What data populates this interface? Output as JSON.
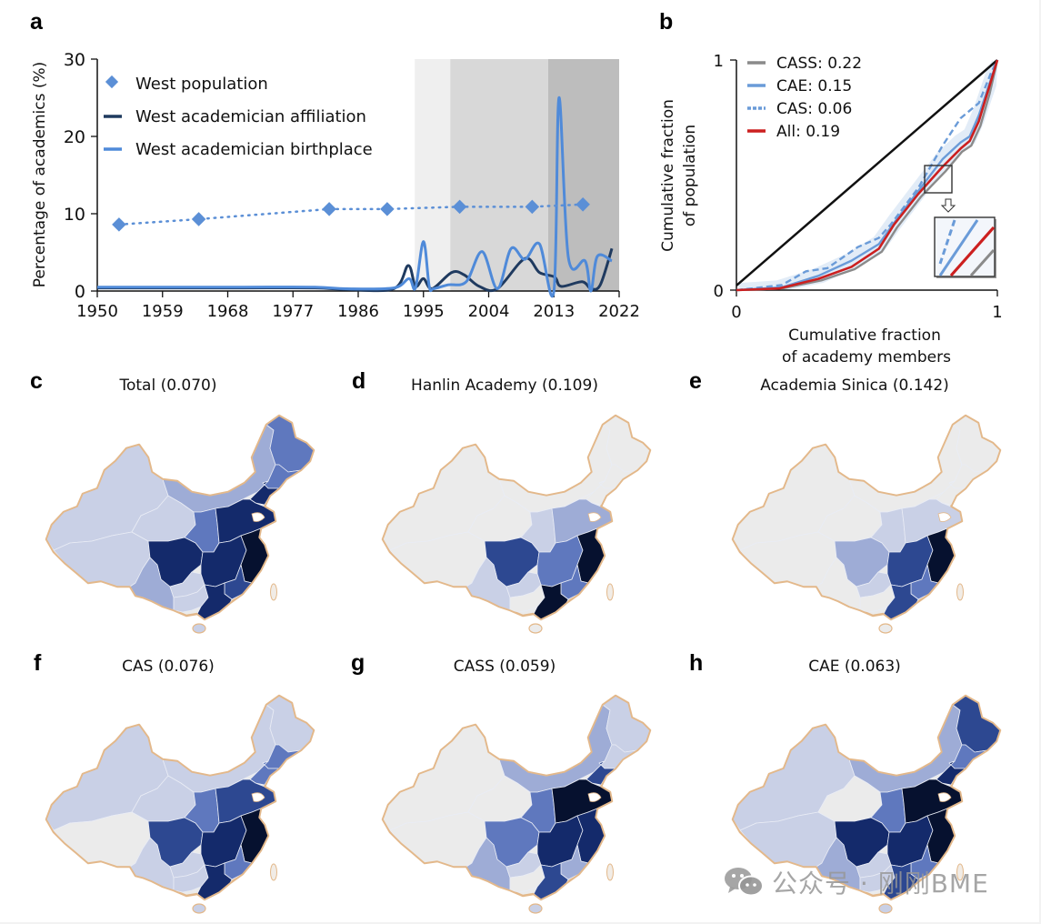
{
  "panel_letters": {
    "a": "a",
    "b": "b",
    "c": "c",
    "d": "d",
    "e": "e",
    "f": "f",
    "g": "g",
    "h": "h"
  },
  "colors": {
    "west_population": "#5b8fd6",
    "affiliation": "#1f3a5f",
    "birthplace": "#4f8ad9",
    "shade_light": "#efefef",
    "shade_mid": "#d8d8d8",
    "shade_dark": "#bdbdbd",
    "cass": "#8a8a8a",
    "cae": "#6a9bd8",
    "cas": "#6a9bd8",
    "all": "#cc1f1f",
    "map_levels": [
      "#ebebeb",
      "#c9d0e6",
      "#9eacd6",
      "#5f78be",
      "#2d4891",
      "#142a6b",
      "#06112f"
    ],
    "map_border": "#e3b88a"
  },
  "chart_data": [
    {
      "id": "a",
      "type": "line",
      "title": "",
      "xlabel": "",
      "ylabel": "Percentage of academics (%)",
      "xlim": [
        1950,
        2022
      ],
      "ylim": [
        0,
        30
      ],
      "xticks": [
        "1950",
        "1959",
        "1968",
        "1977",
        "1986",
        "1995",
        "2004",
        "2013",
        "2022"
      ],
      "yticks": [
        "0",
        "10",
        "20",
        "30"
      ],
      "legend_position": "top-left",
      "shaded_periods": [
        {
          "from": 1993.8,
          "to": 1998.7,
          "shade": "light"
        },
        {
          "from": 1998.7,
          "to": 2012.2,
          "shade": "mid"
        },
        {
          "from": 2012.2,
          "to": 2022,
          "shade": "dark"
        }
      ],
      "series": [
        {
          "name": "West population",
          "style": "dotted-diamond",
          "x": [
            1953,
            1964,
            1982,
            1990,
            2000,
            2010,
            2017
          ],
          "y": [
            8.6,
            9.3,
            10.6,
            10.6,
            10.9,
            10.9,
            11.2
          ]
        },
        {
          "name": "West academician affiliation",
          "style": "line",
          "x": [
            1950,
            1960,
            1970,
            1980,
            1984.3,
            1990.9,
            1992.9,
            1993.9,
            1995.0,
            1996.2,
            1998.9,
            2000.6,
            2002.7,
            2005.2,
            2009.0,
            2011.0,
            2013.1,
            2014.0,
            2016.9,
            2018.1,
            2019.4,
            2021.0
          ],
          "y": [
            0.4,
            0.4,
            0.4,
            0.4,
            0.2,
            0.3,
            3.3,
            0.6,
            1.6,
            0.3,
            2.4,
            2.1,
            0.6,
            0.3,
            4.2,
            2.4,
            1.8,
            0.6,
            1.2,
            0.3,
            0.8,
            5.5
          ]
        },
        {
          "name": "West academician birthplace",
          "style": "line",
          "x": [
            1950,
            1960,
            1970,
            1980,
            1984.3,
            1990.9,
            1993.0,
            1993.9,
            1995.0,
            1995.8,
            1996.4,
            1998.4,
            2000.9,
            2003.1,
            2005.2,
            2007.1,
            2009.0,
            2011.0,
            2013.0,
            2013.7,
            2015.0,
            2017.3,
            2018.1,
            2019.0,
            2021.0
          ],
          "y": [
            0.5,
            0.5,
            0.5,
            0.5,
            0.3,
            0.4,
            1.6,
            0.4,
            6.4,
            0.6,
            0.3,
            0.8,
            1.2,
            5.1,
            0.3,
            5.5,
            4.1,
            6.1,
            0.0,
            25.0,
            4.3,
            3.9,
            0.0,
            4.5,
            3.9
          ]
        }
      ]
    },
    {
      "id": "b",
      "type": "line",
      "title": "",
      "xlabel": "Cumulative fraction\nof academy members",
      "xlabel_lines": [
        "Cumulative fraction",
        "of academy members"
      ],
      "ylabel_lines": [
        "Cumulative fraction",
        "of population"
      ],
      "xlim": [
        0,
        1
      ],
      "ylim": [
        0,
        1
      ],
      "xticks": [
        "0",
        "1"
      ],
      "yticks": [
        "0",
        "1"
      ],
      "legend_position": "top-left",
      "equality_line": {
        "x": [
          0,
          1
        ],
        "y": [
          0.02,
          1
        ]
      },
      "series": [
        {
          "name": "CASS: 0.22",
          "key": "cass",
          "style": "solid",
          "x": [
            0,
            0.174,
            0.325,
            0.453,
            0.557,
            0.616,
            0.708,
            0.801,
            0.865,
            0.9,
            0.935,
            0.97,
            1.0
          ],
          "y": [
            0,
            0.007,
            0.042,
            0.091,
            0.167,
            0.273,
            0.407,
            0.516,
            0.602,
            0.628,
            0.714,
            0.852,
            1.0
          ]
        },
        {
          "name": "CAE: 0.15",
          "key": "cae",
          "style": "solid",
          "x": [
            0,
            0.174,
            0.314,
            0.441,
            0.546,
            0.604,
            0.697,
            0.79,
            0.859,
            0.894,
            0.929,
            0.976,
            1.0
          ],
          "y": [
            0,
            0.012,
            0.062,
            0.128,
            0.2,
            0.292,
            0.431,
            0.569,
            0.642,
            0.668,
            0.76,
            0.918,
            1.0
          ]
        },
        {
          "name": "CAS: 0.06",
          "key": "cas",
          "style": "dashed",
          "x": [
            0,
            0.174,
            0.267,
            0.348,
            0.465,
            0.546,
            0.592,
            0.697,
            0.79,
            0.859,
            0.929,
            0.976,
            1.0
          ],
          "y": [
            0,
            0.022,
            0.082,
            0.095,
            0.187,
            0.227,
            0.286,
            0.444,
            0.628,
            0.747,
            0.813,
            0.945,
            1.0
          ]
        },
        {
          "name": "All: 0.19",
          "key": "all",
          "style": "solid",
          "x": [
            0,
            0.163,
            0.314,
            0.441,
            0.546,
            0.604,
            0.697,
            0.79,
            0.859,
            0.894,
            0.929,
            0.964,
            1.0
          ],
          "y": [
            0,
            0.007,
            0.049,
            0.101,
            0.18,
            0.285,
            0.418,
            0.536,
            0.615,
            0.648,
            0.734,
            0.866,
            1.0
          ]
        }
      ],
      "zoom_box": {
        "x": [
          0.72,
          0.825
        ],
        "y": [
          0.43,
          0.55
        ]
      }
    }
  ],
  "maps": [
    {
      "id": "c",
      "title": "Total (0.070)",
      "levels": {
        "xinjiang": 1,
        "tibet": 1,
        "qinghai": 1,
        "inner_mongolia": 2,
        "heilongjiang": 3,
        "jilin": 3,
        "liaoning": 5,
        "north_china": 5,
        "northwest": 3,
        "sichuan": 5,
        "yunnan": 2,
        "guizhou": 1,
        "central": 5,
        "east_coast": 6,
        "guangxi": 1,
        "guangdong": 5,
        "south_east": 4,
        "hainan": 1
      }
    },
    {
      "id": "d",
      "title": "Hanlin Academy (0.109)",
      "levels": {
        "xinjiang": 0,
        "tibet": 0,
        "qinghai": 0,
        "inner_mongolia": 0,
        "heilongjiang": 0,
        "jilin": 0,
        "liaoning": 0,
        "north_china": 2,
        "northwest": 1,
        "sichuan": 4,
        "yunnan": 1,
        "guizhou": 1,
        "central": 3,
        "east_coast": 6,
        "guangxi": 0,
        "guangdong": 6,
        "south_east": 3,
        "hainan": 0
      }
    },
    {
      "id": "e",
      "title": "Academia Sinica (0.142)",
      "levels": {
        "xinjiang": 0,
        "tibet": 0,
        "qinghai": 0,
        "inner_mongolia": 0,
        "heilongjiang": 0,
        "jilin": 0,
        "liaoning": 0,
        "north_china": 1,
        "northwest": 1,
        "sichuan": 2,
        "yunnan": 0,
        "guizhou": 1,
        "central": 4,
        "east_coast": 6,
        "guangxi": 0,
        "guangdong": 4,
        "south_east": 3,
        "hainan": 0
      }
    },
    {
      "id": "f",
      "title": "CAS (0.076)",
      "levels": {
        "xinjiang": 1,
        "tibet": 0,
        "qinghai": 1,
        "inner_mongolia": 1,
        "heilongjiang": 1,
        "jilin": 3,
        "liaoning": 3,
        "north_china": 4,
        "northwest": 3,
        "sichuan": 4,
        "yunnan": 1,
        "guizhou": 1,
        "central": 5,
        "east_coast": 6,
        "guangxi": 1,
        "guangdong": 5,
        "south_east": 3,
        "hainan": 1
      }
    },
    {
      "id": "g",
      "title": "CASS (0.059)",
      "levels": {
        "xinjiang": 0,
        "tibet": 0,
        "qinghai": 0,
        "inner_mongolia": 2,
        "heilongjiang": 1,
        "jilin": 1,
        "liaoning": 4,
        "north_china": 6,
        "northwest": 3,
        "sichuan": 3,
        "yunnan": 2,
        "guizhou": 1,
        "central": 5,
        "east_coast": 5,
        "guangxi": 0,
        "guangdong": 4,
        "south_east": 2,
        "hainan": 1
      }
    },
    {
      "id": "h",
      "title": "CAE (0.063)",
      "levels": {
        "xinjiang": 1,
        "tibet": 1,
        "qinghai": 0,
        "inner_mongolia": 2,
        "heilongjiang": 4,
        "jilin": 3,
        "liaoning": 5,
        "north_china": 6,
        "northwest": 3,
        "sichuan": 5,
        "yunnan": 2,
        "guizhou": 1,
        "central": 5,
        "east_coast": 6,
        "guangxi": 1,
        "guangdong": 4,
        "south_east": 3,
        "hainan": 1
      }
    }
  ],
  "watermark": {
    "text": "公众号 · 刚刚BME",
    "icon": "wechat-icon"
  }
}
